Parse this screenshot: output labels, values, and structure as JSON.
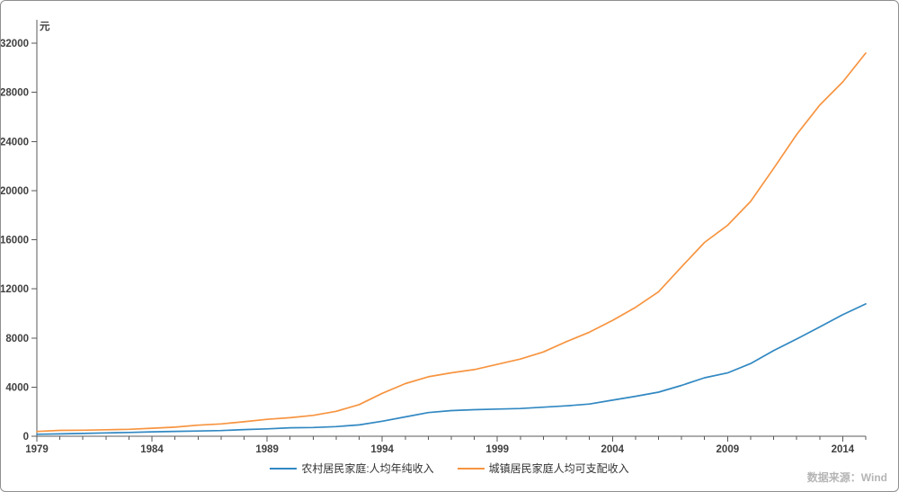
{
  "page": {
    "background": "#ffffff",
    "border_color": "#8f8f8f"
  },
  "chart_data": {
    "type": "line",
    "title": "",
    "xlabel": "",
    "ylabel": "元",
    "unit_label": "元",
    "grid": false,
    "legend_position": "bottom",
    "axis_color": "#595959",
    "tick_label_color": "#404040",
    "xlim": [
      1979,
      2015
    ],
    "ylim": [
      0,
      32000
    ],
    "x_ticks_labeled": [
      1979,
      1984,
      1989,
      1994,
      1999,
      2004,
      2009,
      2014
    ],
    "y_ticks": [
      0,
      4000,
      8000,
      12000,
      16000,
      20000,
      24000,
      28000,
      32000
    ],
    "x": [
      1979,
      1980,
      1981,
      1982,
      1983,
      1984,
      1985,
      1986,
      1987,
      1988,
      1989,
      1990,
      1991,
      1992,
      1993,
      1994,
      1995,
      1996,
      1997,
      1998,
      1999,
      2000,
      2001,
      2002,
      2003,
      2004,
      2005,
      2006,
      2007,
      2008,
      2009,
      2010,
      2011,
      2012,
      2013,
      2014,
      2015
    ],
    "series": [
      {
        "name": "农村居民家庭:人均年纯收入",
        "color": "#3188c2",
        "values": [
          160.2,
          191.3,
          223.4,
          270.1,
          309.8,
          355.3,
          397.6,
          423.8,
          462.6,
          544.9,
          601.5,
          686.3,
          708.6,
          784.0,
          921.6,
          1221.0,
          1577.7,
          1926.1,
          2090.1,
          2162.0,
          2210.3,
          2253.4,
          2366.4,
          2475.6,
          2622.2,
          2936.4,
          3254.9,
          3587.0,
          4140.4,
          4760.6,
          5153.2,
          5919.0,
          6977.3,
          7916.6,
          8895.9,
          9892.0,
          10772.0
        ]
      },
      {
        "name": "城镇居民家庭人均可支配收入",
        "color": "#f79440",
        "values": [
          387.0,
          477.6,
          491.9,
          526.6,
          564.0,
          651.2,
          739.1,
          899.6,
          1002.2,
          1181.4,
          1375.7,
          1510.2,
          1700.6,
          2026.6,
          2577.4,
          3496.2,
          4283.0,
          4838.9,
          5160.3,
          5425.1,
          5854.0,
          6280.0,
          6859.6,
          7702.8,
          8472.2,
          9421.6,
          10493.0,
          11759.5,
          13785.8,
          15780.8,
          17174.7,
          19109.4,
          21809.8,
          24564.7,
          26955.1,
          28843.9,
          31194.8
        ]
      }
    ]
  },
  "footer": {
    "source": "数据来源：Wind"
  }
}
